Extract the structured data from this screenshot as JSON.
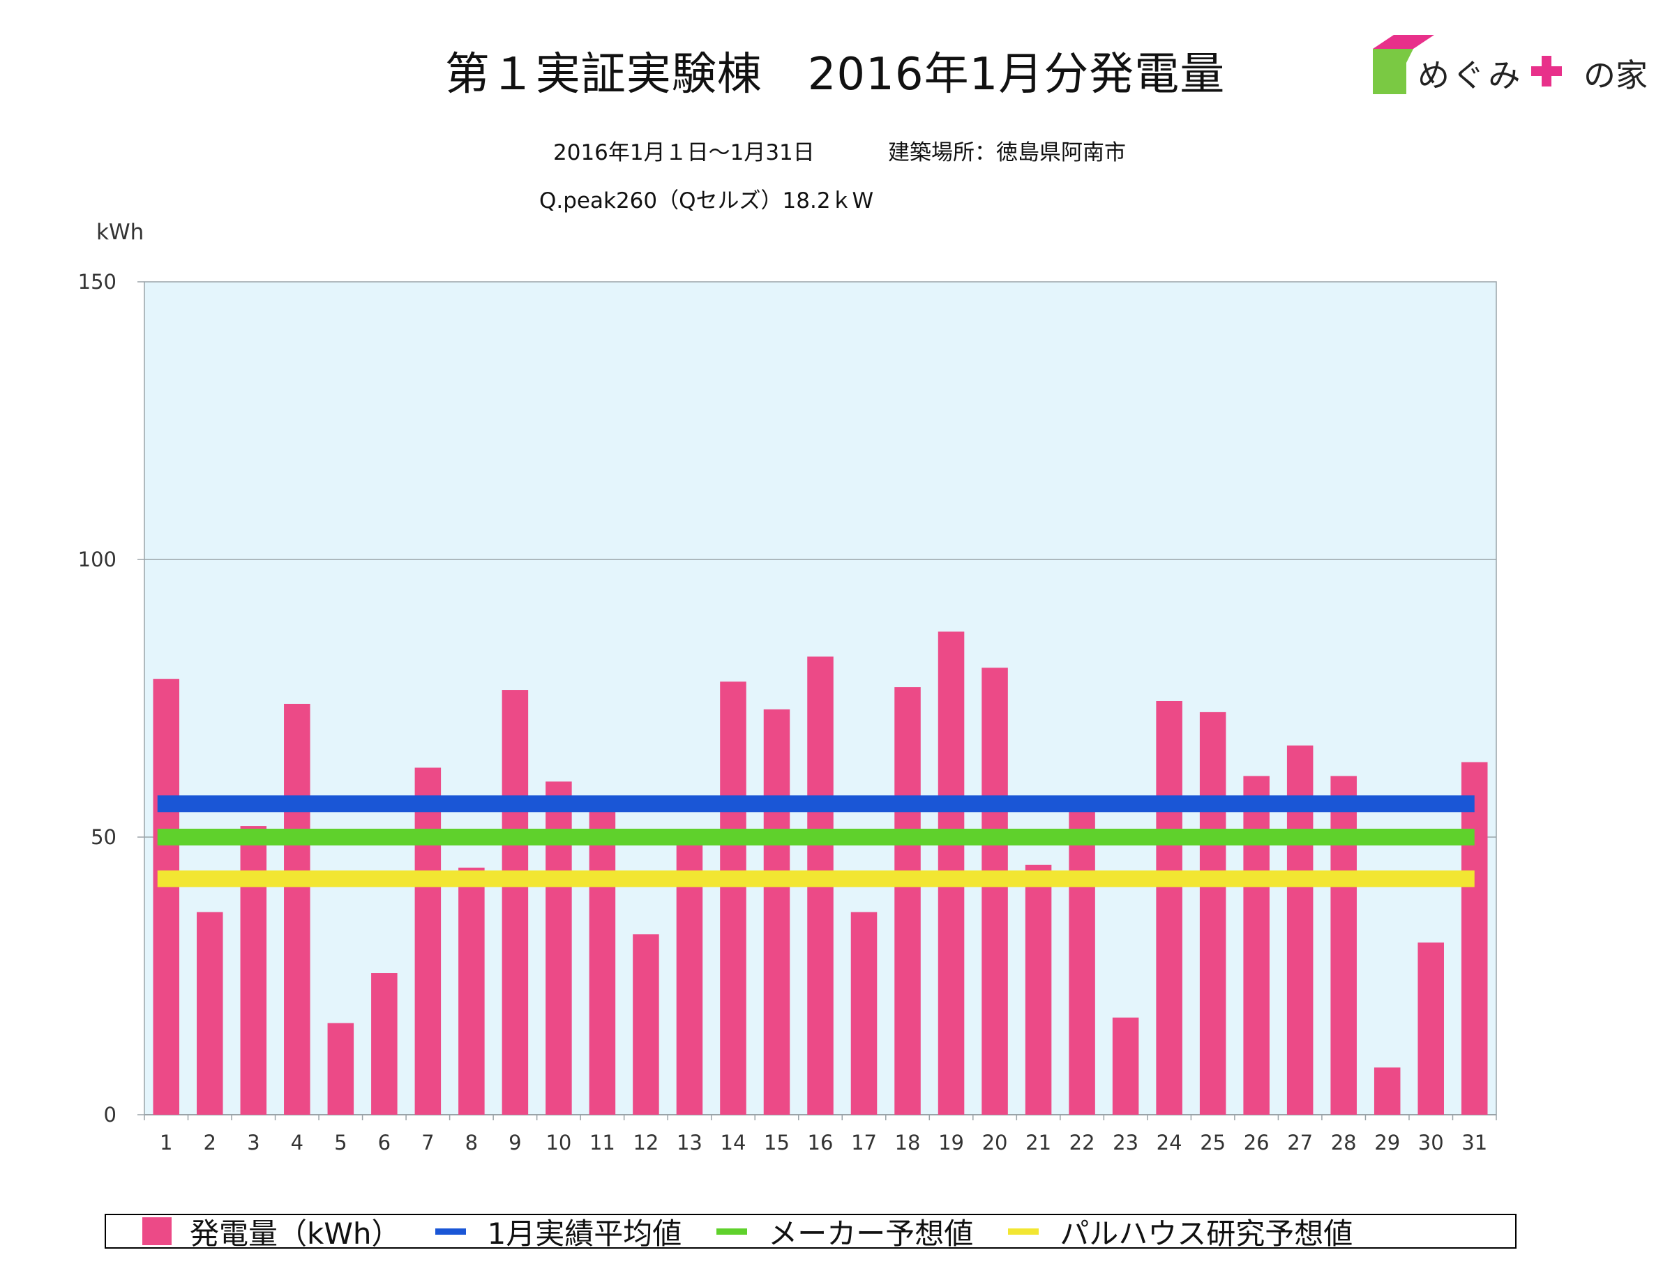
{
  "header": {
    "title": "第１実証実験棟　2016年1月分発電量",
    "period": "2016年1月１日～1月31日",
    "location": "建築場所：徳島県阿南市",
    "panel": "Q.peak260（Qセルズ）18.2ｋW"
  },
  "logo": {
    "text": "めぐみ",
    "text_after": "の家",
    "colors": {
      "roof": "#e8308a",
      "wall": "#7ac943",
      "plus": "#e8308a"
    }
  },
  "chart_data": {
    "type": "bar",
    "title": "第１実証実験棟　2016年1月分発電量",
    "ylabel": "kWh",
    "ylim": [
      0,
      150
    ],
    "yticks": [
      0,
      50,
      100,
      150
    ],
    "grid": true,
    "legend_position": "bottom",
    "categories": [
      "1",
      "2",
      "3",
      "4",
      "5",
      "6",
      "7",
      "8",
      "9",
      "10",
      "11",
      "12",
      "13",
      "14",
      "15",
      "16",
      "17",
      "18",
      "19",
      "20",
      "21",
      "22",
      "23",
      "24",
      "25",
      "26",
      "27",
      "28",
      "29",
      "30",
      "31"
    ],
    "series": [
      {
        "name": "発電量（kWh）",
        "type": "bar",
        "color": "#ec4a87",
        "values": [
          78.5,
          36.5,
          52,
          74,
          16.5,
          25.5,
          62.5,
          44.5,
          76.5,
          60,
          55,
          32.5,
          49.5,
          78,
          73,
          82.5,
          36.5,
          77,
          87,
          80.5,
          45,
          55,
          17.5,
          74.5,
          72.5,
          61,
          66.5,
          61,
          8.5,
          31,
          63.5
        ]
      },
      {
        "name": "1月実績平均値",
        "type": "line",
        "color": "#1a56d6",
        "value": 56
      },
      {
        "name": "メーカー予想値",
        "type": "line",
        "color": "#5fd12c",
        "value": 50
      },
      {
        "name": "パルハウス研究予想値",
        "type": "line",
        "color": "#f2e632",
        "value": 42.5
      }
    ],
    "plot_background": "#e4f5fc"
  }
}
